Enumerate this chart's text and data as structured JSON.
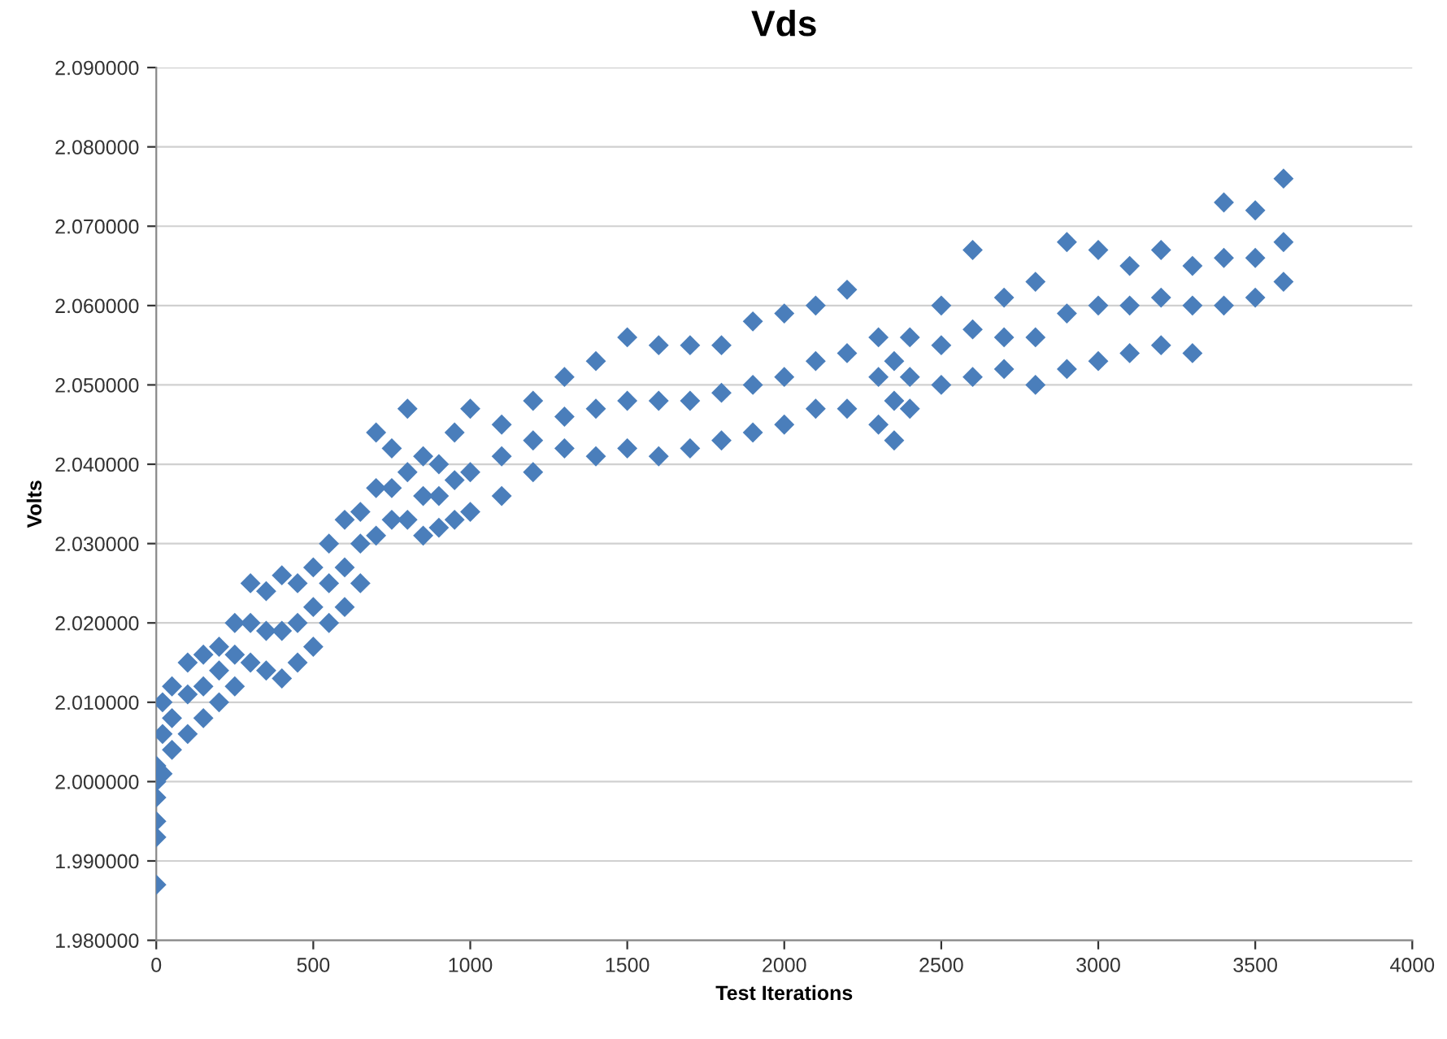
{
  "chart_data": {
    "type": "scatter",
    "title": "Vds",
    "xlabel": "Test Iterations",
    "ylabel": "Volts",
    "x": [
      0,
      0,
      0,
      0,
      0,
      0,
      20,
      20,
      20,
      50,
      50,
      50,
      100,
      100,
      100,
      150,
      150,
      150,
      200,
      200,
      200,
      250,
      250,
      250,
      300,
      300,
      300,
      350,
      350,
      350,
      400,
      400,
      400,
      450,
      450,
      450,
      500,
      500,
      500,
      550,
      550,
      550,
      600,
      600,
      600,
      650,
      650,
      650,
      700,
      700,
      700,
      750,
      750,
      750,
      800,
      800,
      800,
      850,
      850,
      850,
      900,
      900,
      900,
      950,
      950,
      950,
      1000,
      1000,
      1000,
      1100,
      1100,
      1100,
      1200,
      1200,
      1200,
      1300,
      1300,
      1300,
      1400,
      1400,
      1400,
      1500,
      1500,
      1500,
      1600,
      1600,
      1600,
      1700,
      1700,
      1700,
      1800,
      1800,
      1800,
      1900,
      1900,
      1900,
      2000,
      2000,
      2000,
      2100,
      2100,
      2100,
      2200,
      2200,
      2200,
      2300,
      2300,
      2300,
      2350,
      2350,
      2350,
      2400,
      2400,
      2400,
      2500,
      2500,
      2500,
      2600,
      2600,
      2600,
      2700,
      2700,
      2700,
      2800,
      2800,
      2800,
      2900,
      2900,
      2900,
      3000,
      3000,
      3000,
      3100,
      3100,
      3100,
      3200,
      3200,
      3200,
      3300,
      3300,
      3300,
      3400,
      3400,
      3400,
      3500,
      3500,
      3500,
      3590,
      3590,
      3590
    ],
    "series": [
      {
        "color": "#4a7ebb",
        "values": [
          1.987,
          1.993,
          1.995,
          1.998,
          2.0,
          2.002,
          2.001,
          2.006,
          2.01,
          2.004,
          2.008,
          2.012,
          2.006,
          2.011,
          2.015,
          2.008,
          2.012,
          2.016,
          2.01,
          2.014,
          2.017,
          2.012,
          2.016,
          2.02,
          2.015,
          2.02,
          2.025,
          2.014,
          2.019,
          2.024,
          2.013,
          2.019,
          2.026,
          2.015,
          2.02,
          2.025,
          2.017,
          2.022,
          2.027,
          2.02,
          2.025,
          2.03,
          2.022,
          2.027,
          2.033,
          2.025,
          2.03,
          2.034,
          2.031,
          2.037,
          2.044,
          2.033,
          2.037,
          2.042,
          2.033,
          2.039,
          2.047,
          2.031,
          2.036,
          2.041,
          2.032,
          2.036,
          2.04,
          2.033,
          2.038,
          2.044,
          2.034,
          2.039,
          2.047,
          2.036,
          2.041,
          2.045,
          2.039,
          2.043,
          2.048,
          2.042,
          2.046,
          2.051,
          2.041,
          2.047,
          2.053,
          2.042,
          2.048,
          2.056,
          2.041,
          2.048,
          2.055,
          2.042,
          2.048,
          2.055,
          2.043,
          2.049,
          2.055,
          2.044,
          2.05,
          2.058,
          2.045,
          2.051,
          2.059,
          2.047,
          2.053,
          2.06,
          2.047,
          2.054,
          2.062,
          2.045,
          2.051,
          2.056,
          2.043,
          2.048,
          2.053,
          2.047,
          2.051,
          2.056,
          2.05,
          2.055,
          2.06,
          2.051,
          2.057,
          2.067,
          2.052,
          2.056,
          2.061,
          2.05,
          2.056,
          2.063,
          2.052,
          2.059,
          2.068,
          2.053,
          2.06,
          2.067,
          2.054,
          2.06,
          2.065,
          2.055,
          2.061,
          2.067,
          2.054,
          2.06,
          2.065,
          2.06,
          2.066,
          2.073,
          2.061,
          2.066,
          2.072,
          2.063,
          2.068,
          2.076
        ]
      }
    ],
    "marker": "diamond",
    "grid": "y",
    "xlim": [
      0,
      4000
    ],
    "xticks": [
      0,
      500,
      1000,
      1500,
      2000,
      2500,
      3000,
      3500,
      4000
    ],
    "ylim": [
      1.98,
      2.09
    ],
    "yticks": [
      {
        "value": 1.98,
        "label": "1.980000"
      },
      {
        "value": 1.99,
        "label": "1.990000"
      },
      {
        "value": 2.0,
        "label": "2.000000"
      },
      {
        "value": 2.01,
        "label": "2.010000"
      },
      {
        "value": 2.02,
        "label": "2.020000"
      },
      {
        "value": 2.03,
        "label": "2.030000"
      },
      {
        "value": 2.04,
        "label": "2.040000"
      },
      {
        "value": 2.05,
        "label": "2.050000"
      },
      {
        "value": 2.06,
        "label": "2.060000"
      },
      {
        "value": 2.07,
        "label": "2.070000"
      },
      {
        "value": 2.08,
        "label": "2.080000"
      },
      {
        "value": 2.09,
        "label": "2.090000"
      }
    ]
  }
}
